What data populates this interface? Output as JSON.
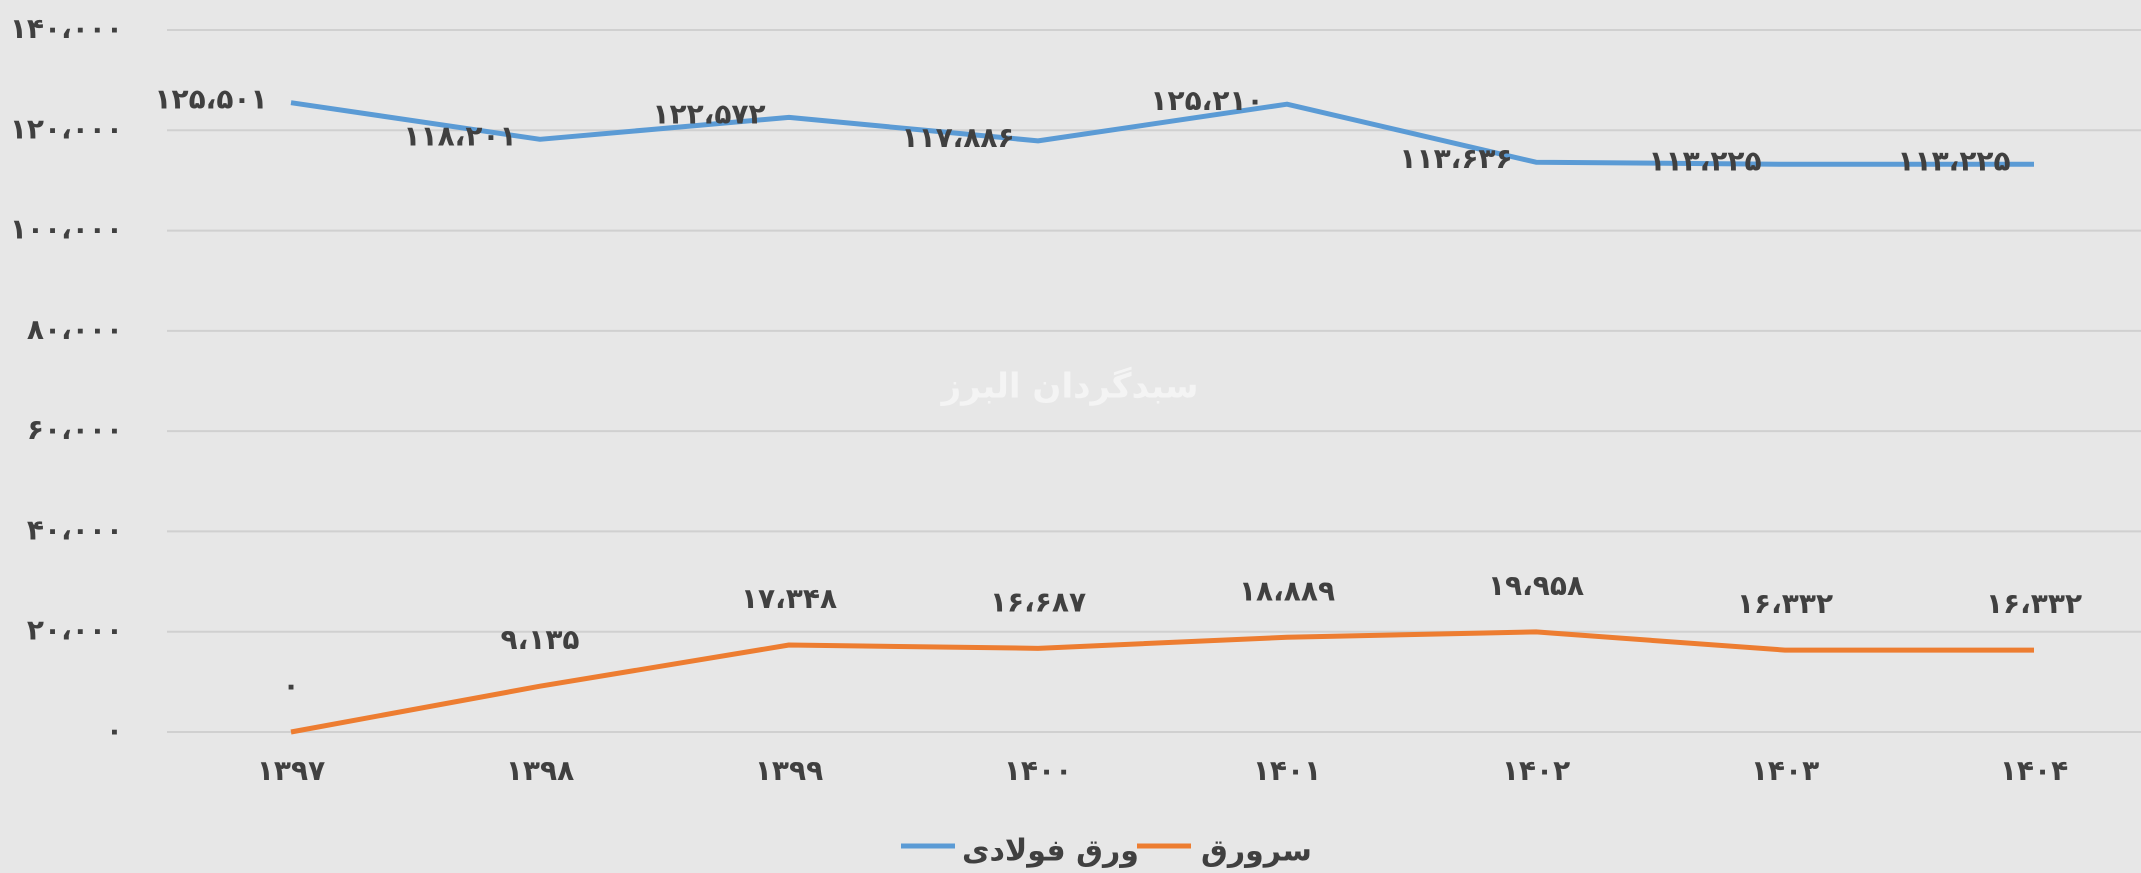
{
  "chart_data": {
    "type": "line",
    "watermark": "سبدگردان البرز",
    "categories": [
      "۱۳۹۷",
      "۱۳۹۸",
      "۱۳۹۹",
      "۱۴۰۰",
      "۱۴۰۱",
      "۱۴۰۲",
      "۱۴۰۳",
      "۱۴۰۴"
    ],
    "series": [
      {
        "name": "ورق فولادی",
        "color": "#5b9bd5",
        "values": [
          125501,
          118201,
          122572,
          117886,
          125210,
          113636,
          113225,
          113225
        ],
        "value_labels": [
          "۱۲۵،۵۰۱",
          "۱۱۸،۲۰۱",
          "۱۲۲،۵۷۲",
          "۱۱۷،۸۸۶",
          "۱۲۵،۲۱۰",
          "۱۱۳،۶۳۶",
          "۱۱۳،۲۲۵",
          "۱۱۳،۲۲۵"
        ]
      },
      {
        "name": "سرورق",
        "color": "#ed7d31",
        "values": [
          0,
          9135,
          17348,
          16687,
          18889,
          19958,
          16332,
          16332
        ],
        "value_labels": [
          "۰",
          "۹،۱۳۵",
          "۱۷،۳۴۸",
          "۱۶،۶۸۷",
          "۱۸،۸۸۹",
          "۱۹،۹۵۸",
          "۱۶،۳۳۲",
          "۱۶،۳۳۲"
        ]
      }
    ],
    "ylim": [
      0,
      140000
    ],
    "yticks": [
      {
        "value": 0,
        "label": "۰"
      },
      {
        "value": 20000,
        "label": "۲۰،۰۰۰"
      },
      {
        "value": 40000,
        "label": "۴۰،۰۰۰"
      },
      {
        "value": 60000,
        "label": "۶۰،۰۰۰"
      },
      {
        "value": 80000,
        "label": "۸۰،۰۰۰"
      },
      {
        "value": 100000,
        "label": "۱۰۰،۰۰۰"
      },
      {
        "value": 120000,
        "label": "۱۲۰،۰۰۰"
      },
      {
        "value": 140000,
        "label": "۱۴۰،۰۰۰"
      }
    ],
    "grid": true,
    "legend": "bottom"
  }
}
